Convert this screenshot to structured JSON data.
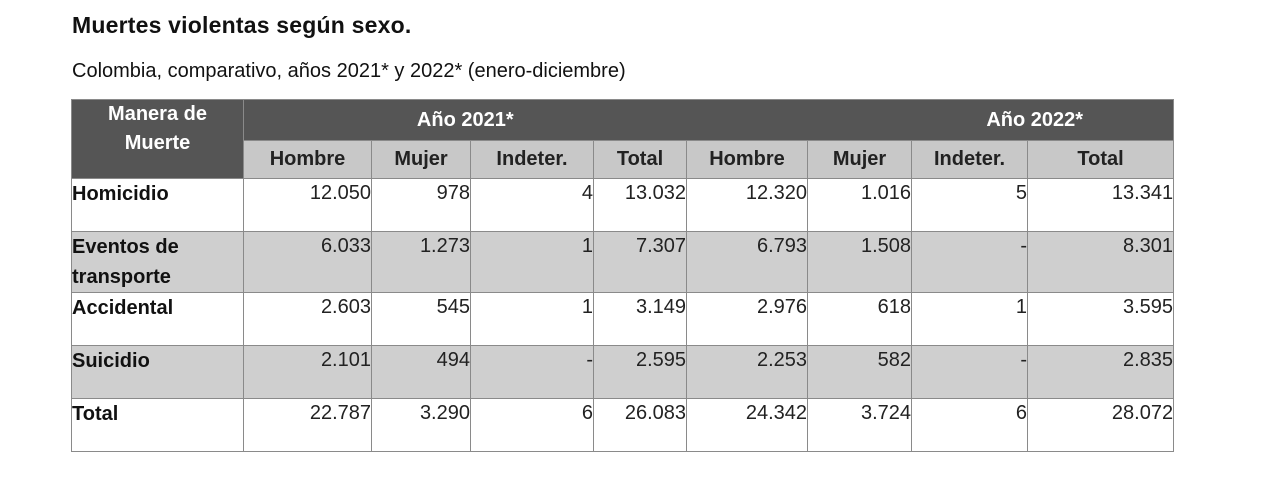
{
  "title": "Muertes violentas según sexo.",
  "subtitle": "Colombia, comparativo, años 2021* y 2022* (enero-diciembre)",
  "table": {
    "corner_label_line1": "Manera de",
    "corner_label_line2": "Muerte",
    "year_2021": "Año 2021*",
    "year_2022": "Año 2022*",
    "columns": [
      "Hombre",
      "Mujer",
      "Indeter.",
      "Total",
      "Hombre",
      "Mujer",
      "Indeter.",
      "Total"
    ],
    "rows": [
      {
        "label_line1": "Homicidio",
        "label_line2": "",
        "values": [
          "12.050",
          "978",
          "4",
          "13.032",
          "12.320",
          "1.016",
          "5",
          "13.341"
        ]
      },
      {
        "label_line1": "Eventos de",
        "label_line2": "transporte",
        "values": [
          "6.033",
          "1.273",
          "1",
          "7.307",
          "6.793",
          "1.508",
          "-",
          "8.301"
        ]
      },
      {
        "label_line1": "Accidental",
        "label_line2": "",
        "values": [
          "2.603",
          "545",
          "1",
          "3.149",
          "2.976",
          "618",
          "1",
          "3.595"
        ]
      },
      {
        "label_line1": "Suicidio",
        "label_line2": "",
        "values": [
          "2.101",
          "494",
          "-",
          "2.595",
          "2.253",
          "582",
          "-",
          "2.835"
        ]
      },
      {
        "label_line1": "Total",
        "label_line2": "",
        "values": [
          "22.787",
          "3.290",
          "6",
          "26.083",
          "24.342",
          "3.724",
          "6",
          "28.072"
        ]
      }
    ]
  }
}
